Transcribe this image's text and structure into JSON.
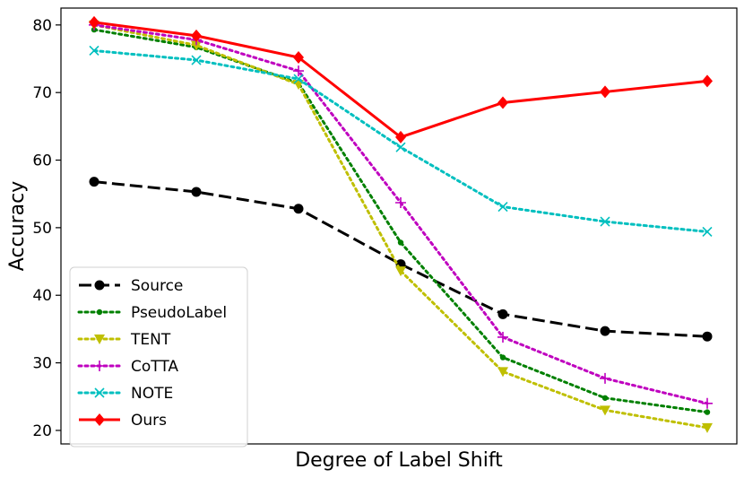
{
  "chart_data": {
    "type": "line",
    "title": "",
    "xlabel": "Degree of Label Shift",
    "ylabel": "Accuracy",
    "x": [
      1,
      2,
      3,
      4,
      5,
      6,
      7
    ],
    "ylim": [
      18,
      82.5
    ],
    "yticks": [
      20,
      30,
      40,
      50,
      60,
      70,
      80
    ],
    "xticks": [],
    "grid": false,
    "legend_position": "lower-left",
    "series": [
      {
        "name": "Source",
        "color": "#000000",
        "linestyle": "dashed",
        "marker": "circle",
        "values": [
          56.8,
          55.3,
          52.8,
          44.6,
          37.2,
          34.7,
          33.9
        ]
      },
      {
        "name": "PseudoLabel",
        "color": "#008000",
        "linestyle": "dotted",
        "marker": "point",
        "values": [
          79.3,
          76.7,
          71.4,
          47.8,
          30.8,
          24.8,
          22.7
        ]
      },
      {
        "name": "TENT",
        "color": "#bfbf00",
        "linestyle": "dotted",
        "marker": "triangle-down",
        "values": [
          80.0,
          77.0,
          71.2,
          43.6,
          28.7,
          23.0,
          20.4
        ]
      },
      {
        "name": "CoTTA",
        "color": "#bf00bf",
        "linestyle": "dotted",
        "marker": "plus",
        "values": [
          80.0,
          77.8,
          73.2,
          53.7,
          33.8,
          27.7,
          24.0
        ]
      },
      {
        "name": "NOTE",
        "color": "#00bfbf",
        "linestyle": "dotted",
        "marker": "x",
        "values": [
          76.2,
          74.8,
          72.0,
          61.9,
          53.1,
          50.9,
          49.4
        ]
      },
      {
        "name": "Ours",
        "color": "#ff0000",
        "linestyle": "solid",
        "marker": "diamond",
        "values": [
          80.4,
          78.4,
          75.2,
          63.4,
          68.5,
          70.1,
          71.7
        ]
      }
    ]
  }
}
